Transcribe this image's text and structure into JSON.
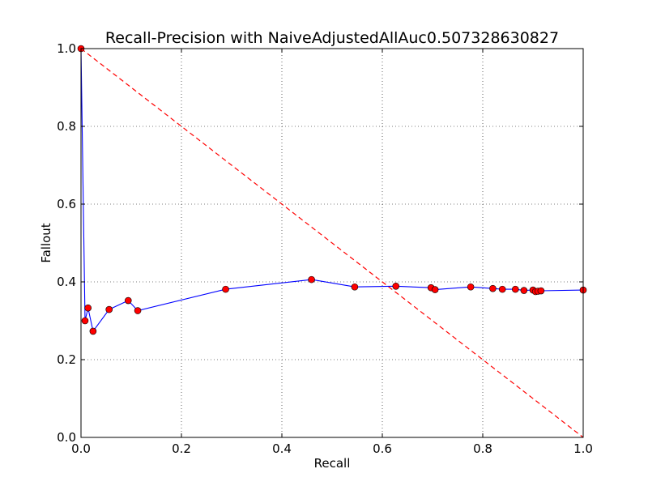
{
  "chart_data": {
    "type": "line",
    "title": "Recall-Precision with NaiveAdjustedAllAuc0.507328630827",
    "xlabel": "Recall",
    "ylabel": "Fallout",
    "xlim": [
      0.0,
      1.0
    ],
    "ylim": [
      0.0,
      1.0
    ],
    "x_ticks": [
      "0.0",
      "0.2",
      "0.4",
      "0.6",
      "0.8",
      "1.0"
    ],
    "y_ticks": [
      "0.0",
      "0.2",
      "0.4",
      "0.6",
      "0.8",
      "1.0"
    ],
    "grid": true,
    "legend": "none",
    "colors": {
      "curve": "#0000ff",
      "marker": "#ff0000",
      "reference": "#ff0000"
    },
    "reference_line": {
      "style": "dashed",
      "x": [
        0.0,
        1.0
      ],
      "y": [
        1.0,
        0.0
      ]
    },
    "series": [
      {
        "x": [
          0.0,
          0.008,
          0.014,
          0.024,
          0.056,
          0.094,
          0.113,
          0.288,
          0.459,
          0.545,
          0.627,
          0.697,
          0.705,
          0.776,
          0.82,
          0.839,
          0.865,
          0.882,
          0.9,
          0.905,
          0.91,
          0.916,
          1.0
        ],
        "y": [
          1.0,
          0.3,
          0.333,
          0.273,
          0.329,
          0.352,
          0.326,
          0.381,
          0.406,
          0.387,
          0.389,
          0.385,
          0.38,
          0.387,
          0.383,
          0.381,
          0.381,
          0.378,
          0.379,
          0.375,
          0.376,
          0.377,
          0.379
        ]
      }
    ]
  }
}
